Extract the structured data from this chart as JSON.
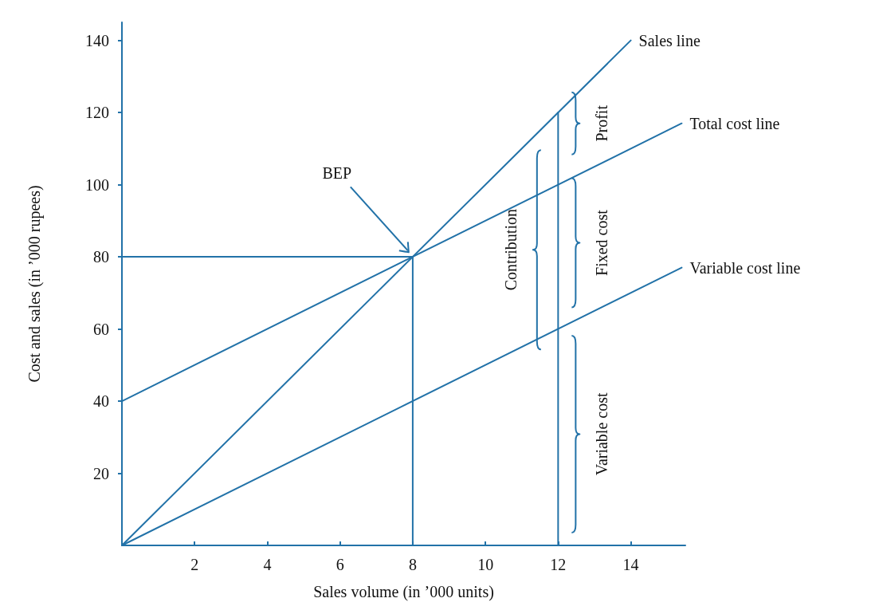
{
  "chart_data": {
    "type": "line",
    "xlabel": "Sales volume (in ’000 units)",
    "ylabel": "Cost and sales (in ’000 rupees)",
    "xlim": [
      0,
      15.5
    ],
    "xticks": [
      2,
      4,
      6,
      8,
      10,
      12,
      14
    ],
    "ylim": [
      0,
      145
    ],
    "yticks": [
      20,
      40,
      60,
      80,
      100,
      120,
      140
    ],
    "grid": false,
    "legend": false,
    "marker": "none",
    "line_style": "solid",
    "series": [
      {
        "name": "Sales line",
        "color": "#2272a8",
        "x": [
          0,
          14
        ],
        "values": [
          0,
          140
        ]
      },
      {
        "name": "Total cost line",
        "color": "#2272a8",
        "x": [
          0,
          15.4
        ],
        "values": [
          40,
          117
        ]
      },
      {
        "name": "Variable cost line",
        "color": "#2272a8",
        "x": [
          0,
          15.4
        ],
        "values": [
          0,
          77
        ]
      },
      {
        "color": "#2272a8",
        "x": [
          0,
          8
        ],
        "values": [
          80,
          80
        ]
      },
      {
        "color": "#2272a8",
        "x": [
          8,
          8
        ],
        "values": [
          0,
          80
        ]
      },
      {
        "color": "#2272a8",
        "x": [
          12,
          12
        ],
        "values": [
          0,
          120
        ]
      }
    ],
    "annotations": [
      "BEP",
      "Profit",
      "Fixed cost",
      "Contribution",
      "Variable cost"
    ]
  }
}
